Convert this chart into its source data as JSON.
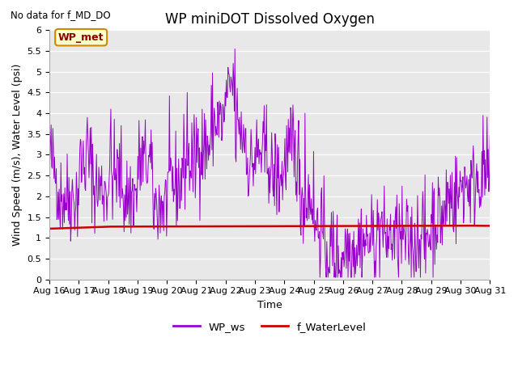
{
  "title": "WP miniDOT Dissolved Oxygen",
  "top_left_text": "No data for f_MD_DO",
  "xlabel": "Time",
  "ylabel": "Wind Speed (m/s), Water Level (psi)",
  "ylim": [
    0.0,
    6.0
  ],
  "yticks": [
    0.0,
    0.5,
    1.0,
    1.5,
    2.0,
    2.5,
    3.0,
    3.5,
    4.0,
    4.5,
    5.0,
    5.5,
    6.0
  ],
  "xtick_labels": [
    "Aug 16",
    "Aug 17",
    "Aug 18",
    "Aug 19",
    "Aug 20",
    "Aug 21",
    "Aug 22",
    "Aug 23",
    "Aug 24",
    "Aug 25",
    "Aug 26",
    "Aug 27",
    "Aug 28",
    "Aug 29",
    "Aug 30",
    "Aug 31"
  ],
  "wp_ws_color": "#9900cc",
  "f_waterlevel_color": "#cc0000",
  "background_color": "#e8e8e8",
  "legend_wp_ws": "WP_ws",
  "legend_wl": "f_WaterLevel",
  "inset_label": "WP_met",
  "inset_bg": "#ffffcc",
  "inset_border": "#cc8800",
  "title_fontsize": 12,
  "label_fontsize": 9,
  "tick_fontsize": 8,
  "figwidth": 6.4,
  "figheight": 4.8,
  "dpi": 100
}
